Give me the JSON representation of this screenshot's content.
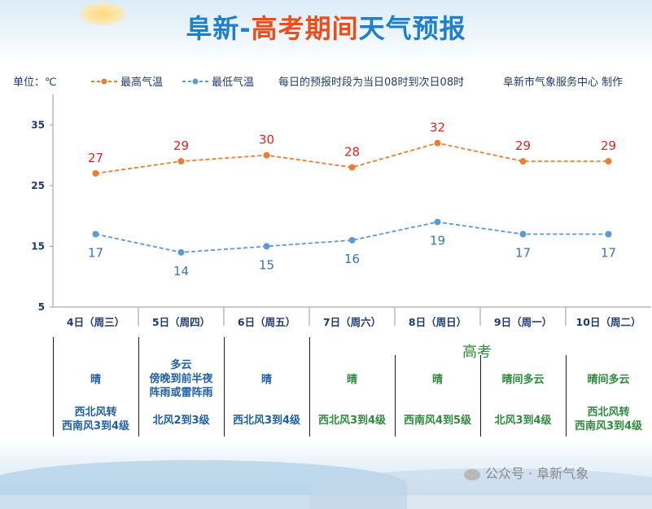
{
  "header": {
    "title_part1": "阜新-",
    "title_part2": "高考期间",
    "title_part3": "天气预报",
    "unit": "单位：℃",
    "period_note": "每日的预报时段为当日08时到次日08时",
    "producer": "阜新市气象服务中心 制作"
  },
  "chart_data": {
    "type": "line",
    "categories": [
      "4日（周三）",
      "5日（周四）",
      "6日（周五）",
      "7日（周六）",
      "8日（周日）",
      "9日（周一）",
      "10日（周二）"
    ],
    "series": [
      {
        "name": "最高气温",
        "values": [
          27,
          29,
          30,
          28,
          32,
          29,
          29
        ],
        "color": "#ed7d31"
      },
      {
        "name": "最低气温",
        "values": [
          17,
          14,
          15,
          16,
          19,
          17,
          17
        ],
        "color": "#5b9bd5"
      }
    ],
    "ylim": [
      5,
      40
    ],
    "yticks": [
      5,
      15,
      25,
      35
    ],
    "grid": false,
    "legend": "top"
  },
  "forecast": {
    "gaokao_label": "高考",
    "days": [
      {
        "condition": [
          "晴"
        ],
        "wind": [
          "西北风转",
          "西南风3到4级"
        ],
        "color": "#1f5fa8"
      },
      {
        "condition": [
          "多云",
          "傍晚到前半夜",
          "阵雨或雷阵雨"
        ],
        "wind": [
          "北风2到3级"
        ],
        "color": "#1f5fa8"
      },
      {
        "condition": [
          "晴"
        ],
        "wind": [
          "西北风3到4级"
        ],
        "color": "#1f5fa8"
      },
      {
        "condition": [
          "晴"
        ],
        "wind": [
          "西北风3到4级"
        ],
        "color": "#2e8b3e"
      },
      {
        "condition": [
          "晴"
        ],
        "wind": [
          "西南风4到5级"
        ],
        "color": "#2e8b3e"
      },
      {
        "condition": [
          "晴间多云"
        ],
        "wind": [
          "北风3到4级"
        ],
        "color": "#2e8b3e"
      },
      {
        "condition": [
          "晴间多云"
        ],
        "wind": [
          "西北风转",
          "西南风3到4级"
        ],
        "color": "#2e8b3e"
      }
    ]
  },
  "watermark": "公众号 · 阜新气象"
}
